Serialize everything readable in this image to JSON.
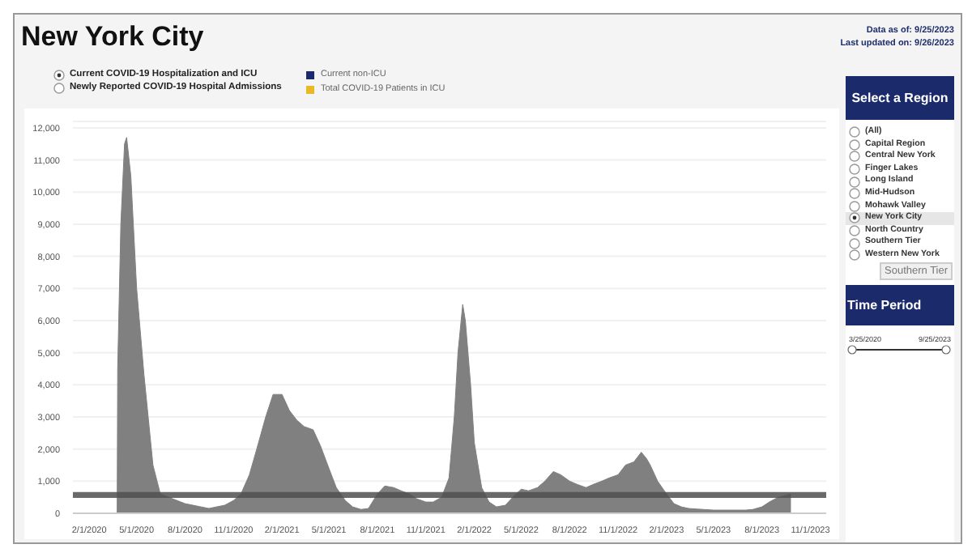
{
  "chart_data": {
    "type": "area",
    "title": "New York City",
    "x": [
      "2020-03-25",
      "2020-03-26",
      "2020-04-01",
      "2020-04-08",
      "2020-04-12",
      "2020-04-20",
      "2020-05-01",
      "2020-05-15",
      "2020-06-01",
      "2020-06-15",
      "2020-08-01",
      "2020-09-15",
      "2020-10-15",
      "2020-11-01",
      "2020-11-15",
      "2020-12-01",
      "2020-12-15",
      "2021-01-01",
      "2021-01-15",
      "2021-02-01",
      "2021-02-15",
      "2021-03-01",
      "2021-03-15",
      "2021-04-01",
      "2021-04-15",
      "2021-05-01",
      "2021-05-15",
      "2021-06-01",
      "2021-06-15",
      "2021-07-01",
      "2021-07-15",
      "2021-08-01",
      "2021-08-15",
      "2021-09-01",
      "2021-09-15",
      "2021-10-01",
      "2021-10-15",
      "2021-11-01",
      "2021-11-15",
      "2021-12-01",
      "2021-12-15",
      "2021-12-25",
      "2022-01-01",
      "2022-01-10",
      "2022-01-15",
      "2022-01-25",
      "2022-02-01",
      "2022-02-15",
      "2022-03-01",
      "2022-03-15",
      "2022-04-01",
      "2022-04-15",
      "2022-05-01",
      "2022-05-15",
      "2022-06-01",
      "2022-06-15",
      "2022-07-01",
      "2022-07-15",
      "2022-08-01",
      "2022-08-15",
      "2022-09-01",
      "2022-09-15",
      "2022-10-01",
      "2022-10-15",
      "2022-11-01",
      "2022-11-15",
      "2022-12-01",
      "2022-12-15",
      "2022-12-25",
      "2023-01-01",
      "2023-01-15",
      "2023-02-01",
      "2023-02-15",
      "2023-03-01",
      "2023-03-15",
      "2023-04-01",
      "2023-05-01",
      "2023-06-01",
      "2023-07-01",
      "2023-07-15",
      "2023-08-01",
      "2023-08-15",
      "2023-09-01",
      "2023-09-25"
    ],
    "series": [
      {
        "color": "#808080",
        "values": [
          0,
          4500,
          9000,
          11500,
          11700,
          10500,
          7000,
          4300,
          1500,
          600,
          300,
          150,
          250,
          400,
          600,
          1200,
          2000,
          3000,
          3700,
          3700,
          3200,
          2900,
          2700,
          2600,
          2100,
          1400,
          800,
          400,
          200,
          120,
          150,
          600,
          850,
          800,
          700,
          600,
          450,
          350,
          350,
          500,
          1100,
          3000,
          5000,
          6500,
          6000,
          4000,
          2200,
          800,
          350,
          200,
          250,
          500,
          750,
          700,
          800,
          1000,
          1300,
          1200,
          1000,
          900,
          800,
          900,
          1000,
          1100,
          1200,
          1500,
          1600,
          1900,
          1700,
          1500,
          1000,
          600,
          300,
          200,
          150,
          130,
          100,
          100,
          100,
          120,
          200,
          350,
          500,
          600
        ]
      }
    ],
    "xlim": [
      "2020-01-01",
      "2023-12-01"
    ],
    "xticks": [
      {
        "value": "2020-02-01",
        "label": "2/1/2020"
      },
      {
        "value": "2020-05-01",
        "label": "5/1/2020"
      },
      {
        "value": "2020-08-01",
        "label": "8/1/2020"
      },
      {
        "value": "2020-11-01",
        "label": "11/1/2020"
      },
      {
        "value": "2021-02-01",
        "label": "2/1/2021"
      },
      {
        "value": "2021-05-01",
        "label": "5/1/2021"
      },
      {
        "value": "2021-08-01",
        "label": "8/1/2021"
      },
      {
        "value": "2021-11-01",
        "label": "11/1/2021"
      },
      {
        "value": "2022-02-01",
        "label": "2/1/2022"
      },
      {
        "value": "2022-05-01",
        "label": "5/1/2022"
      },
      {
        "value": "2022-08-01",
        "label": "8/1/2022"
      },
      {
        "value": "2022-11-01",
        "label": "11/1/2022"
      },
      {
        "value": "2023-02-01",
        "label": "2/1/2023"
      },
      {
        "value": "2023-05-01",
        "label": "5/1/2023"
      },
      {
        "value": "2023-08-01",
        "label": "8/1/2023"
      },
      {
        "value": "2023-11-01",
        "label": "11/1/2023"
      }
    ],
    "ylim": [
      0,
      12200
    ],
    "yticks": [
      0,
      {
        "value": 1000,
        "label": "1,000"
      },
      {
        "value": 2000,
        "label": "2,000"
      },
      {
        "value": 3000,
        "label": "3,000"
      },
      {
        "value": 4000,
        "label": "4,000"
      },
      {
        "value": 5000,
        "label": "5,000"
      },
      {
        "value": 6000,
        "label": "6,000"
      },
      {
        "value": 7000,
        "label": "7,000"
      },
      {
        "value": 8000,
        "label": "8,000"
      },
      {
        "value": 9000,
        "label": "9,000"
      },
      {
        "value": 10000,
        "label": "10,000"
      },
      {
        "value": 11000,
        "label": "11,000"
      },
      {
        "value": 12000,
        "label": "12,000"
      }
    ],
    "grid": "y",
    "bands": [
      {
        "axis": "y",
        "from": 480,
        "to": 660,
        "color": "#505050"
      }
    ],
    "annotations": [
      "Data as of: 9/25/2023",
      "Last updated on: 9/26/2023",
      "Current COVID-19 Hospitalization and ICU",
      "Newly Reported COVID-19 Hospital Admissions",
      "Current non-ICU",
      "Total COVID-19 Patients in ICU",
      "Select a Region",
      "(All)",
      "Capital Region",
      "Central New York",
      "Finger Lakes",
      "Long Island",
      "Mid-Hudson",
      "Mohawk Valley",
      "New York City",
      "North Country",
      "Southern Tier",
      "Western New York",
      "Southern Tier",
      "Time Period",
      "3/25/2020",
      "9/25/2023"
    ]
  }
}
